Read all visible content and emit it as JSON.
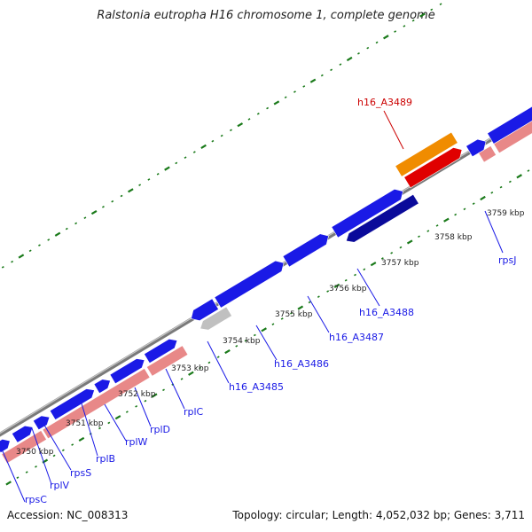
{
  "title": "Ralstonia eutropha H16 chromosome 1, complete genome",
  "footer": {
    "accession": "Accession: NC_008313",
    "topology": "Topology: circular; Length: 4,052,032 bp; Genes: 3,711"
  },
  "colors": {
    "forward_gene": "#1a1ae6",
    "forward_gene_dark": "#0a0a9a",
    "reverse_gene": "#e88888",
    "highlight_gene": "#e00000",
    "highlight_label": "#cc0000",
    "gene_product": "#f08c00",
    "pseudo_gene": "#c0c0c0",
    "tick_green": "#1a7a1a",
    "label_blue": "#1a1ae6"
  },
  "kbp_ticks": [
    "3750 kbp",
    "3751 kbp",
    "3752 kbp",
    "3753 kbp",
    "3754 kbp",
    "3755 kbp",
    "3756 kbp",
    "3757 kbp",
    "3758 kbp",
    "3759 kbp"
  ],
  "gene_labels": [
    {
      "name": "rpsC",
      "kind": "normal"
    },
    {
      "name": "rplV",
      "kind": "normal"
    },
    {
      "name": "rpsS",
      "kind": "normal"
    },
    {
      "name": "rplB",
      "kind": "normal"
    },
    {
      "name": "rplW",
      "kind": "normal"
    },
    {
      "name": "rplD",
      "kind": "normal"
    },
    {
      "name": "rplC",
      "kind": "normal"
    },
    {
      "name": "h16_A3485",
      "kind": "normal"
    },
    {
      "name": "h16_A3486",
      "kind": "normal"
    },
    {
      "name": "h16_A3487",
      "kind": "normal"
    },
    {
      "name": "h16_A3488",
      "kind": "normal"
    },
    {
      "name": "h16_A3489",
      "kind": "highlight"
    },
    {
      "name": "rpsJ",
      "kind": "normal"
    }
  ]
}
